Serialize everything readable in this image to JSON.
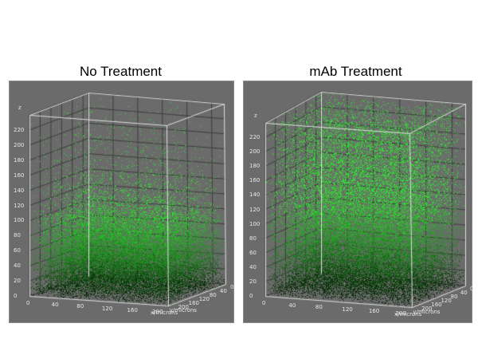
{
  "figure": {
    "panels": [
      {
        "title": "No Treatment"
      },
      {
        "title": "mAb Treatment"
      }
    ]
  },
  "colors": {
    "panel_bg": "#6b6b6b",
    "box_line": "#e0e0e0",
    "grid_line": "#3d3d3d",
    "point_low": "#0a0f0a",
    "point_high": "#33dd33"
  },
  "chart_data": [
    {
      "type": "scatter",
      "subtype": "3d-scatter",
      "title": "No Treatment",
      "xlabel": "x/microns",
      "ylabel": "y/microns",
      "zlabel": "z",
      "x_ticks": [
        "0",
        "40",
        "80",
        "120",
        "160",
        "200"
      ],
      "y_ticks": [
        "0",
        "40",
        "80",
        "120",
        "160",
        "200"
      ],
      "z_ticks": [
        "0",
        "20",
        "40",
        "60",
        "80",
        "100",
        "120",
        "140",
        "160",
        "180",
        "200",
        "220"
      ],
      "xlim": [
        0,
        220
      ],
      "ylim": [
        0,
        220
      ],
      "zlim": [
        0,
        240
      ],
      "grid": true,
      "description": "Dense point cloud concentrated below z≈100 with sparse points up to top; points dark near bottom, green toward top",
      "density_profile_z": [
        [
          0,
          1.0
        ],
        [
          40,
          0.85
        ],
        [
          80,
          0.5
        ],
        [
          100,
          0.25
        ],
        [
          120,
          0.1
        ],
        [
          160,
          0.03
        ],
        [
          200,
          0.01
        ],
        [
          240,
          0.005
        ]
      ]
    },
    {
      "type": "scatter",
      "subtype": "3d-scatter",
      "title": "mAb Treatment",
      "xlabel": "x/microns",
      "ylabel": "y/microns",
      "zlabel": "z",
      "x_ticks": [
        "0",
        "40",
        "80",
        "120",
        "160",
        "200"
      ],
      "y_ticks": [
        "0",
        "40",
        "80",
        "120",
        "160",
        "200"
      ],
      "z_ticks": [
        "0",
        "20",
        "40",
        "60",
        "80",
        "100",
        "120",
        "140",
        "160",
        "180",
        "200",
        "220"
      ],
      "xlim": [
        0,
        220
      ],
      "ylim": [
        0,
        220
      ],
      "zlim": [
        0,
        240
      ],
      "grid": true,
      "description": "Point cloud extends through full height; dense dark at bottom, bright green points throughout upper region and top",
      "density_profile_z": [
        [
          0,
          1.0
        ],
        [
          40,
          0.7
        ],
        [
          80,
          0.5
        ],
        [
          120,
          0.35
        ],
        [
          160,
          0.25
        ],
        [
          200,
          0.2
        ],
        [
          240,
          0.18
        ]
      ]
    }
  ]
}
